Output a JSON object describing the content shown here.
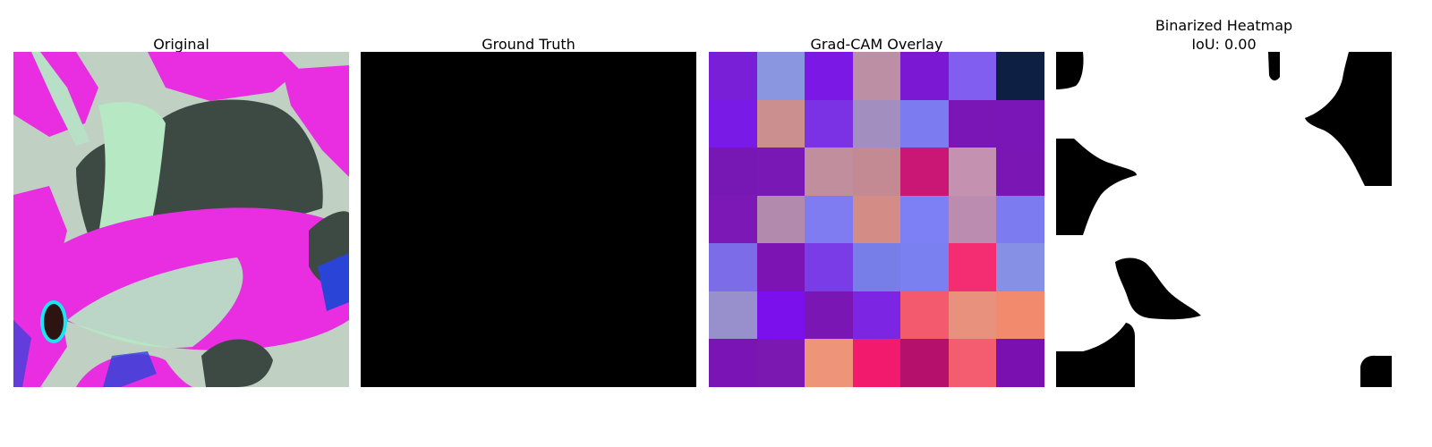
{
  "panels": {
    "original": {
      "title": "Original"
    },
    "ground_truth": {
      "title": "Ground Truth"
    },
    "gradcam": {
      "title": "Grad-CAM Overlay"
    },
    "binarized": {
      "title": "Binarized Heatmap",
      "iou_text": "IoU: 0.00"
    }
  },
  "colors": {
    "background": "#ffffff",
    "leaf_dark": "#3d4a44",
    "leaf_magenta": "#e82ee0",
    "leaf_mint": "#b6e8c3",
    "leaf_blue": "#2a44d8",
    "ground_truth_fill": "#000000",
    "binary_fg": "#000000",
    "binary_bg": "#ffffff"
  },
  "gradcam_grid": [
    [
      "#7a1fd8",
      "#8a96e0",
      "#7c18e6",
      "#bc8fa4",
      "#7a18d4",
      "#815ef0",
      "#0e1f44"
    ],
    [
      "#7a1ae6",
      "#cc8f90",
      "#7b31e4",
      "#a28fc0",
      "#7c7cf0",
      "#7b16b6",
      "#7a16b8"
    ],
    [
      "#7818b4",
      "#7a18b6",
      "#c08e9c",
      "#c48a94",
      "#ca1674",
      "#c492b0",
      "#7a16b4"
    ],
    [
      "#7c18b6",
      "#b28aae",
      "#7e7cf0",
      "#d48c86",
      "#7c80f4",
      "#bc8cb0",
      "#7c7cf0"
    ],
    [
      "#7c6ce8",
      "#7c14b4",
      "#7a3ce6",
      "#787ee8",
      "#7a80f0",
      "#f42c72",
      "#8690e4"
    ],
    [
      "#9890cc",
      "#7c10ec",
      "#7a16b4",
      "#7c26e4",
      "#f45a6e",
      "#e8927e",
      "#f28a6e"
    ],
    [
      "#7a14b4",
      "#7c18b2",
      "#ee9478",
      "#f21a6c",
      "#b4106c",
      "#f45c70",
      "#7a10b0"
    ]
  ]
}
